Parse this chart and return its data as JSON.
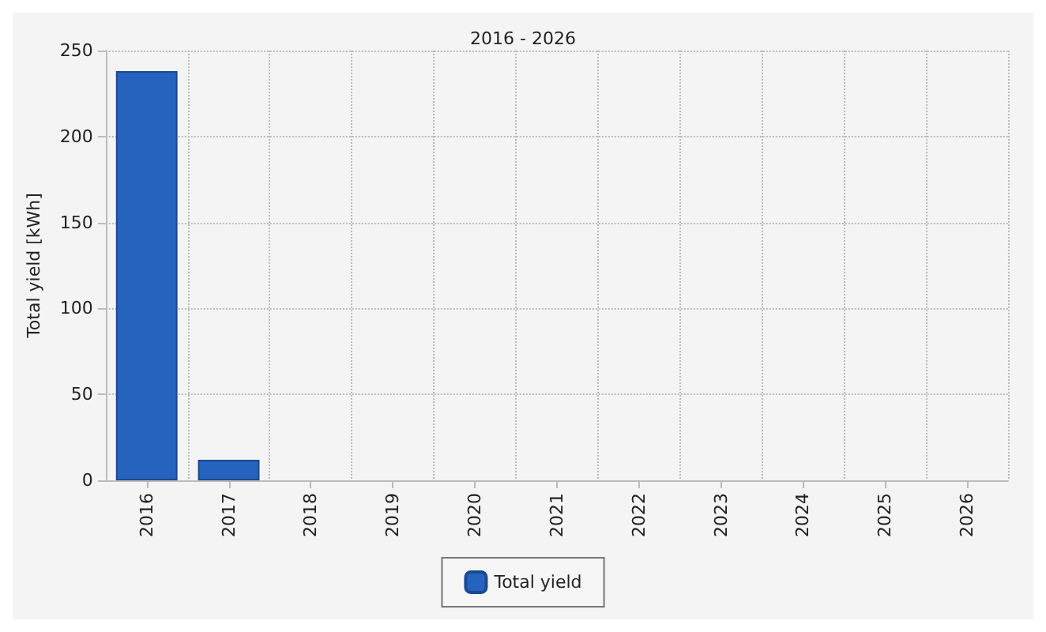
{
  "chart_data": {
    "type": "bar",
    "title": "2016 - 2026",
    "ylabel": "Total yield [kWh]",
    "categories": [
      "2016",
      "2017",
      "2018",
      "2019",
      "2020",
      "2021",
      "2022",
      "2023",
      "2024",
      "2025",
      "2026"
    ],
    "series": [
      {
        "name": "Total yield",
        "color": "#2563be",
        "values": [
          238,
          12,
          null,
          null,
          null,
          null,
          null,
          null,
          null,
          null,
          null
        ]
      }
    ],
    "ylim": [
      0,
      250
    ],
    "yticks": [
      0,
      50,
      100,
      150,
      200,
      250
    ],
    "grid": true,
    "legend": "bottom"
  }
}
